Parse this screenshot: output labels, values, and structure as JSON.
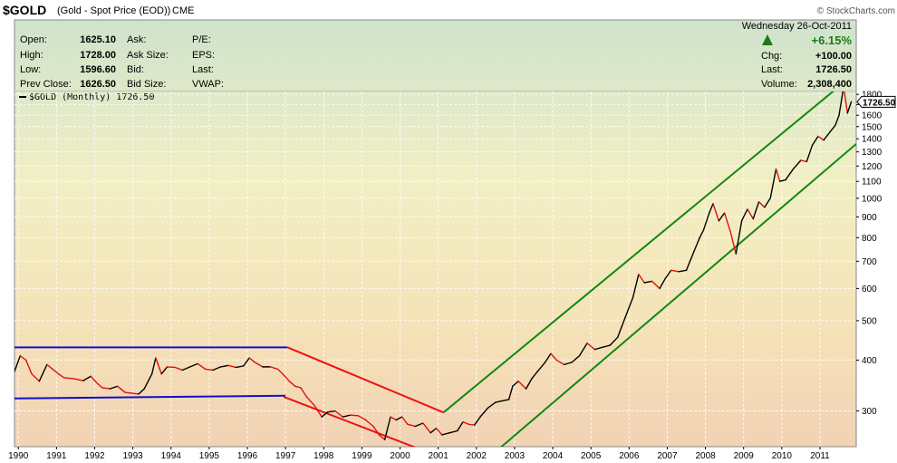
{
  "header": {
    "symbol": "$GOLD",
    "description": "(Gold - Spot Price (EOD))",
    "exchange": "CME",
    "watermark": "© StockCharts.com"
  },
  "info_panel": {
    "left": [
      {
        "label": "Open:",
        "value": "1625.10"
      },
      {
        "label": "High:",
        "value": "1728.00"
      },
      {
        "label": "Low:",
        "value": "1596.60"
      },
      {
        "label": "Prev Close:",
        "value": "1626.50"
      }
    ],
    "middle": [
      "Ask:",
      "Ask Size:",
      "Bid:",
      "Bid Size:"
    ],
    "right": [
      "P/E:",
      "EPS:",
      "Last:",
      "VWAP:"
    ],
    "date": "Wednesday  26-Oct-2011",
    "change_pct": "+6.15%",
    "stats": [
      {
        "label": "Chg:",
        "value": "+100.00"
      },
      {
        "label": "Last:",
        "value": "1726.50"
      },
      {
        "label": "Volume:",
        "value": "2,308,400"
      }
    ]
  },
  "legend": "$GOLD (Monthly) 1726.50",
  "last_price_label": "1726.50",
  "colors": {
    "price_up": "#000000",
    "price_down": "#e01010",
    "range_lines": "#1010cc",
    "down_channel": "#ee1111",
    "up_channel": "#118811"
  },
  "chart_data": {
    "type": "line",
    "title": "$GOLD (Gold - Spot Price (EOD))",
    "series_label": "$GOLD (Monthly) 1726.50",
    "y_scale": "log",
    "ylim": [
      245,
      1830
    ],
    "xlim": [
      1989.9,
      2011.95
    ],
    "y_ticks": [
      300,
      400,
      500,
      600,
      700,
      800,
      900,
      1000,
      1100,
      1200,
      1300,
      1400,
      1500,
      1600,
      1700,
      1800
    ],
    "x_ticks": [
      "1990",
      "1991",
      "1992",
      "1993",
      "1994",
      "1995",
      "1996",
      "1997",
      "1998",
      "1999",
      "2000",
      "2001",
      "2002",
      "2003",
      "2004",
      "2005",
      "2006",
      "2007",
      "2008",
      "2009",
      "2010",
      "2011"
    ],
    "series": [
      {
        "name": "$GOLD (Monthly)",
        "points": [
          [
            1989.9,
            375
          ],
          [
            1990.05,
            410
          ],
          [
            1990.2,
            400
          ],
          [
            1990.35,
            370
          ],
          [
            1990.55,
            355
          ],
          [
            1990.75,
            390
          ],
          [
            1990.9,
            380
          ],
          [
            1991.05,
            370
          ],
          [
            1991.2,
            362
          ],
          [
            1991.45,
            360
          ],
          [
            1991.7,
            356
          ],
          [
            1991.9,
            365
          ],
          [
            1992.05,
            352
          ],
          [
            1992.2,
            342
          ],
          [
            1992.4,
            340
          ],
          [
            1992.6,
            345
          ],
          [
            1992.8,
            333
          ],
          [
            1992.95,
            332
          ],
          [
            1993.15,
            330
          ],
          [
            1993.3,
            340
          ],
          [
            1993.5,
            370
          ],
          [
            1993.6,
            405
          ],
          [
            1993.75,
            370
          ],
          [
            1993.9,
            385
          ],
          [
            1994.1,
            384
          ],
          [
            1994.3,
            378
          ],
          [
            1994.5,
            385
          ],
          [
            1994.7,
            392
          ],
          [
            1994.9,
            380
          ],
          [
            1995.1,
            378
          ],
          [
            1995.3,
            385
          ],
          [
            1995.5,
            388
          ],
          [
            1995.7,
            384
          ],
          [
            1995.9,
            387
          ],
          [
            1996.05,
            405
          ],
          [
            1996.2,
            395
          ],
          [
            1996.4,
            385
          ],
          [
            1996.6,
            385
          ],
          [
            1996.8,
            380
          ],
          [
            1996.95,
            368
          ],
          [
            1997.1,
            355
          ],
          [
            1997.25,
            345
          ],
          [
            1997.4,
            342
          ],
          [
            1997.55,
            325
          ],
          [
            1997.75,
            310
          ],
          [
            1997.95,
            290
          ],
          [
            1998.1,
            298
          ],
          [
            1998.3,
            300
          ],
          [
            1998.5,
            290
          ],
          [
            1998.7,
            293
          ],
          [
            1998.9,
            292
          ],
          [
            1999.1,
            285
          ],
          [
            1999.3,
            275
          ],
          [
            1999.45,
            262
          ],
          [
            1999.6,
            255
          ],
          [
            1999.75,
            290
          ],
          [
            1999.9,
            285
          ],
          [
            2000.05,
            290
          ],
          [
            2000.2,
            278
          ],
          [
            2000.4,
            275
          ],
          [
            2000.6,
            280
          ],
          [
            2000.8,
            265
          ],
          [
            2000.95,
            272
          ],
          [
            2001.1,
            262
          ],
          [
            2001.3,
            265
          ],
          [
            2001.5,
            268
          ],
          [
            2001.65,
            282
          ],
          [
            2001.8,
            278
          ],
          [
            2001.95,
            277
          ],
          [
            2002.1,
            290
          ],
          [
            2002.3,
            305
          ],
          [
            2002.5,
            315
          ],
          [
            2002.7,
            318
          ],
          [
            2002.85,
            320
          ],
          [
            2002.95,
            345
          ],
          [
            2003.1,
            355
          ],
          [
            2003.3,
            340
          ],
          [
            2003.45,
            360
          ],
          [
            2003.6,
            375
          ],
          [
            2003.8,
            395
          ],
          [
            2003.95,
            415
          ],
          [
            2004.1,
            400
          ],
          [
            2004.3,
            390
          ],
          [
            2004.5,
            395
          ],
          [
            2004.7,
            410
          ],
          [
            2004.9,
            440
          ],
          [
            2005.1,
            425
          ],
          [
            2005.3,
            430
          ],
          [
            2005.5,
            435
          ],
          [
            2005.7,
            455
          ],
          [
            2005.9,
            510
          ],
          [
            2006.1,
            570
          ],
          [
            2006.25,
            650
          ],
          [
            2006.4,
            620
          ],
          [
            2006.6,
            625
          ],
          [
            2006.8,
            600
          ],
          [
            2006.95,
            635
          ],
          [
            2007.1,
            665
          ],
          [
            2007.3,
            660
          ],
          [
            2007.5,
            665
          ],
          [
            2007.7,
            740
          ],
          [
            2007.85,
            800
          ],
          [
            2007.95,
            835
          ],
          [
            2008.1,
            920
          ],
          [
            2008.2,
            970
          ],
          [
            2008.35,
            880
          ],
          [
            2008.5,
            920
          ],
          [
            2008.65,
            830
          ],
          [
            2008.8,
            730
          ],
          [
            2008.95,
            880
          ],
          [
            2009.1,
            940
          ],
          [
            2009.25,
            890
          ],
          [
            2009.4,
            980
          ],
          [
            2009.55,
            950
          ],
          [
            2009.7,
            1000
          ],
          [
            2009.85,
            1180
          ],
          [
            2009.95,
            1100
          ],
          [
            2010.1,
            1110
          ],
          [
            2010.3,
            1180
          ],
          [
            2010.5,
            1240
          ],
          [
            2010.65,
            1230
          ],
          [
            2010.8,
            1350
          ],
          [
            2010.95,
            1420
          ],
          [
            2011.1,
            1390
          ],
          [
            2011.25,
            1450
          ],
          [
            2011.4,
            1510
          ],
          [
            2011.5,
            1600
          ],
          [
            2011.62,
            1880
          ],
          [
            2011.72,
            1620
          ],
          [
            2011.82,
            1726.5
          ]
        ]
      }
    ],
    "trend_lines": [
      {
        "name": "range-top",
        "color": "blue",
        "x": [
          1989.9,
          1997.05
        ],
        "y": [
          430,
          430
        ]
      },
      {
        "name": "range-bottom",
        "color": "blue",
        "x": [
          1989.9,
          1997.0
        ],
        "y": [
          322,
          327
        ]
      },
      {
        "name": "down-channel-upper",
        "color": "red",
        "x": [
          1997.05,
          2001.15
        ],
        "y": [
          430,
          297
        ]
      },
      {
        "name": "down-channel-lower",
        "color": "red",
        "x": [
          1996.95,
          2000.9
        ],
        "y": [
          325,
          234
        ]
      },
      {
        "name": "up-channel-upper",
        "color": "green",
        "x": [
          2001.15,
          2011.55
        ],
        "y": [
          298,
          1900
        ]
      },
      {
        "name": "up-channel-lower",
        "color": "green",
        "x": [
          2002.5,
          2011.95
        ],
        "y": [
          238,
          1360
        ]
      }
    ]
  }
}
